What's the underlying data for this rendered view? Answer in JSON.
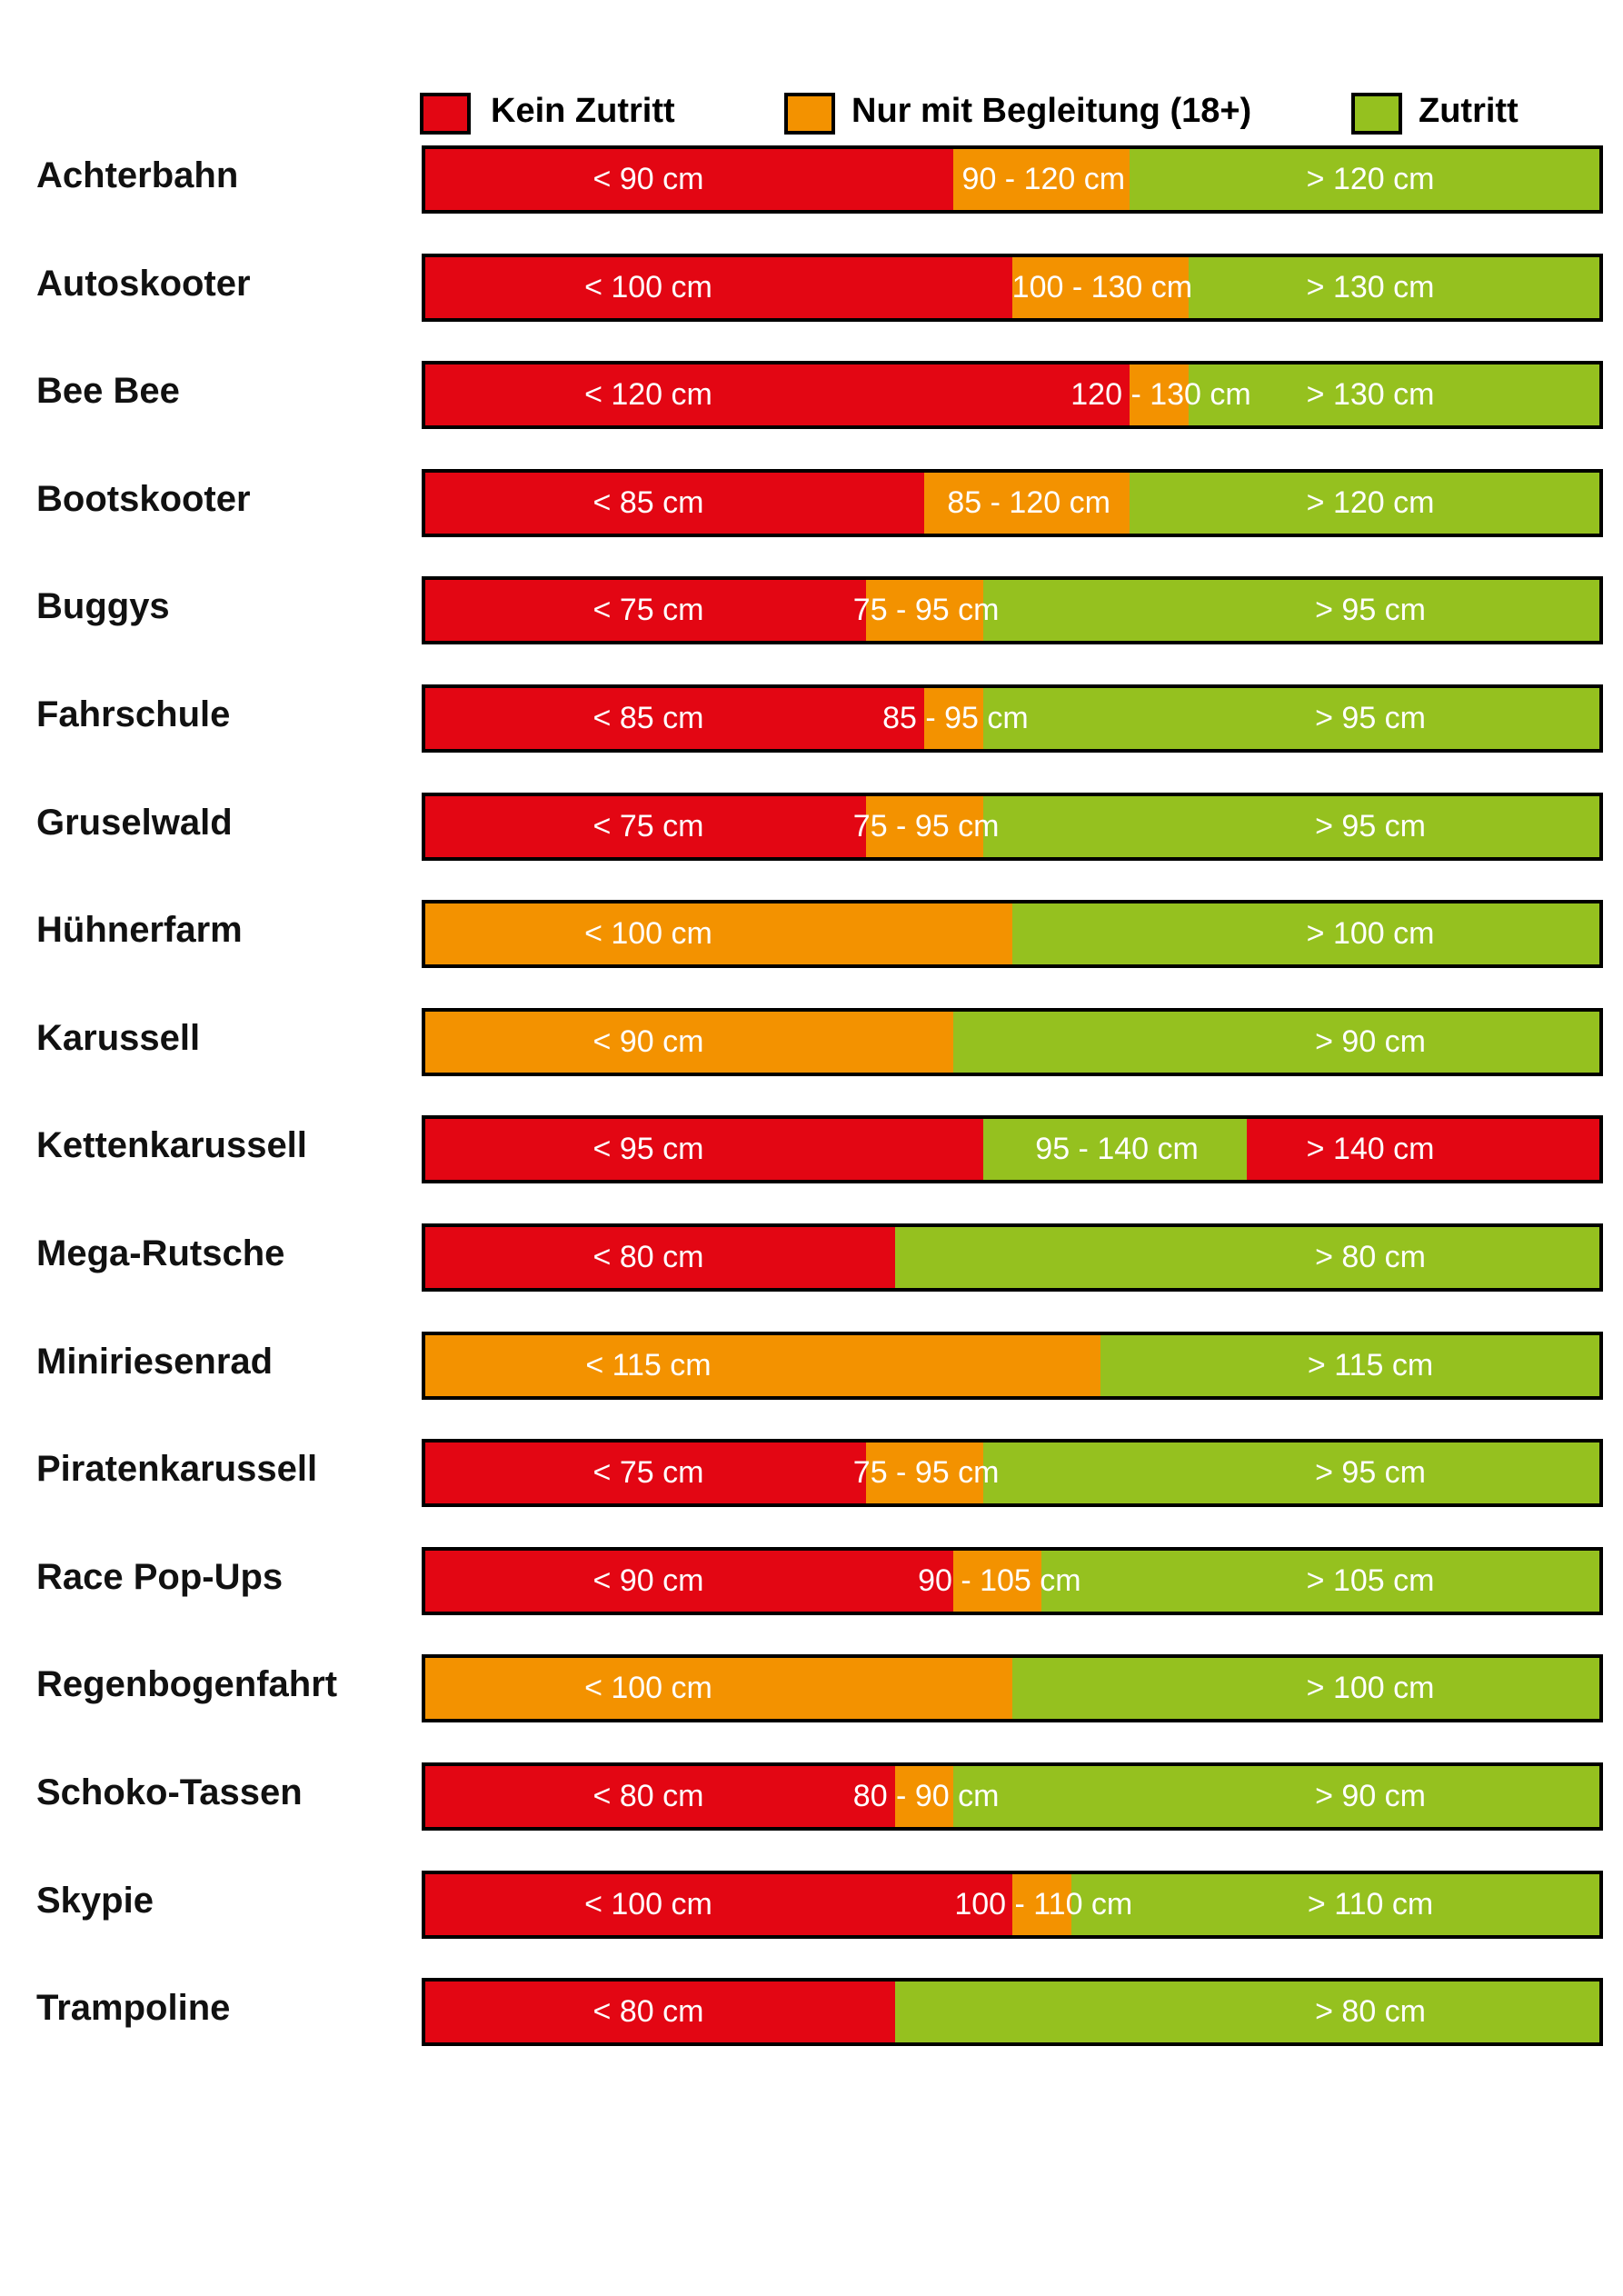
{
  "colors": {
    "kein": "#e30613",
    "begleitung": "#f39200",
    "zutritt": "#95c11f",
    "border": "#000000"
  },
  "legend": [
    {
      "key": "kein",
      "label": "Kein Zutritt"
    },
    {
      "key": "begleitung",
      "label": "Nur mit Begleitung (18+)"
    },
    {
      "key": "zutritt",
      "label": "Zutritt"
    }
  ],
  "chart_data": {
    "type": "bar",
    "orientation": "horizontal-stacked",
    "unit": "cm",
    "legend_position": "top",
    "categories": [
      "Achterbahn",
      "Autoskooter",
      "Bee Bee",
      "Bootskooter",
      "Buggys",
      "Fahrschule",
      "Gruselwald",
      "Hühnerfarm",
      "Karussell",
      "Kettenkarussell",
      "Mega-Rutsche",
      "Miniriesenrad",
      "Piratenkarussell",
      "Race Pop-Ups",
      "Regenbogenfahrt",
      "Schoko-Tassen",
      "Skypie",
      "Trampoline"
    ],
    "rows": [
      {
        "name": "Achterbahn",
        "segments": [
          {
            "status": "kein",
            "to": 90,
            "label": "< 90 cm"
          },
          {
            "status": "begleitung",
            "from": 90,
            "to": 120,
            "label": "90 - 120 cm"
          },
          {
            "status": "zutritt",
            "from": 120,
            "label": "> 120 cm"
          }
        ]
      },
      {
        "name": "Autoskooter",
        "segments": [
          {
            "status": "kein",
            "to": 100,
            "label": "< 100 cm"
          },
          {
            "status": "begleitung",
            "from": 100,
            "to": 130,
            "label": "100 - 130 cm"
          },
          {
            "status": "zutritt",
            "from": 130,
            "label": "> 130 cm"
          }
        ]
      },
      {
        "name": "Bee Bee",
        "segments": [
          {
            "status": "kein",
            "to": 120,
            "label": "< 120 cm"
          },
          {
            "status": "begleitung",
            "from": 120,
            "to": 130,
            "label": "120 - 130 cm"
          },
          {
            "status": "zutritt",
            "from": 130,
            "label": "> 130 cm"
          }
        ]
      },
      {
        "name": "Bootskooter",
        "segments": [
          {
            "status": "kein",
            "to": 85,
            "label": "< 85 cm"
          },
          {
            "status": "begleitung",
            "from": 85,
            "to": 120,
            "label": "85 - 120 cm"
          },
          {
            "status": "zutritt",
            "from": 120,
            "label": "> 120 cm"
          }
        ]
      },
      {
        "name": "Buggys",
        "segments": [
          {
            "status": "kein",
            "to": 75,
            "label": "< 75 cm"
          },
          {
            "status": "begleitung",
            "from": 75,
            "to": 95,
            "label": "75 - 95 cm"
          },
          {
            "status": "zutritt",
            "from": 95,
            "label": "> 95 cm"
          }
        ]
      },
      {
        "name": "Fahrschule",
        "segments": [
          {
            "status": "kein",
            "to": 85,
            "label": "< 85 cm"
          },
          {
            "status": "begleitung",
            "from": 85,
            "to": 95,
            "label": "85 - 95 cm"
          },
          {
            "status": "zutritt",
            "from": 95,
            "label": "> 95 cm"
          }
        ]
      },
      {
        "name": "Gruselwald",
        "segments": [
          {
            "status": "kein",
            "to": 75,
            "label": "< 75 cm"
          },
          {
            "status": "begleitung",
            "from": 75,
            "to": 95,
            "label": "75 - 95 cm"
          },
          {
            "status": "zutritt",
            "from": 95,
            "label": "> 95 cm"
          }
        ]
      },
      {
        "name": "Hühnerfarm",
        "segments": [
          {
            "status": "begleitung",
            "to": 100,
            "label": "< 100 cm"
          },
          {
            "status": "zutritt",
            "from": 100,
            "label": "> 100 cm"
          }
        ]
      },
      {
        "name": "Karussell",
        "segments": [
          {
            "status": "begleitung",
            "to": 90,
            "label": "< 90 cm"
          },
          {
            "status": "zutritt",
            "from": 90,
            "label": "> 90 cm"
          }
        ]
      },
      {
        "name": "Kettenkarussell",
        "segments": [
          {
            "status": "kein",
            "to": 95,
            "label": "< 95 cm"
          },
          {
            "status": "zutritt",
            "from": 95,
            "to": 140,
            "label": "95 - 140 cm"
          },
          {
            "status": "kein",
            "from": 140,
            "label": "> 140 cm"
          }
        ]
      },
      {
        "name": "Mega-Rutsche",
        "segments": [
          {
            "status": "kein",
            "to": 80,
            "label": "< 80 cm"
          },
          {
            "status": "zutritt",
            "from": 80,
            "label": "> 80 cm"
          }
        ]
      },
      {
        "name": "Miniriesenrad",
        "segments": [
          {
            "status": "begleitung",
            "to": 115,
            "label": "< 115 cm"
          },
          {
            "status": "zutritt",
            "from": 115,
            "label": "> 115 cm"
          }
        ]
      },
      {
        "name": "Piratenkarussell",
        "segments": [
          {
            "status": "kein",
            "to": 75,
            "label": "< 75 cm"
          },
          {
            "status": "begleitung",
            "from": 75,
            "to": 95,
            "label": "75 - 95 cm"
          },
          {
            "status": "zutritt",
            "from": 95,
            "label": "> 95 cm"
          }
        ]
      },
      {
        "name": "Race Pop-Ups",
        "segments": [
          {
            "status": "kein",
            "to": 90,
            "label": "< 90 cm"
          },
          {
            "status": "begleitung",
            "from": 90,
            "to": 105,
            "label": "90 - 105 cm"
          },
          {
            "status": "zutritt",
            "from": 105,
            "label": "> 105 cm"
          }
        ]
      },
      {
        "name": "Regenbogenfahrt",
        "segments": [
          {
            "status": "begleitung",
            "to": 100,
            "label": "< 100 cm"
          },
          {
            "status": "zutritt",
            "from": 100,
            "label": "> 100 cm"
          }
        ]
      },
      {
        "name": "Schoko-Tassen",
        "segments": [
          {
            "status": "kein",
            "to": 80,
            "label": "< 80 cm"
          },
          {
            "status": "begleitung",
            "from": 80,
            "to": 90,
            "label": "80 - 90 cm"
          },
          {
            "status": "zutritt",
            "from": 90,
            "label": "> 90 cm"
          }
        ]
      },
      {
        "name": "Skypie",
        "segments": [
          {
            "status": "kein",
            "to": 100,
            "label": "< 100 cm"
          },
          {
            "status": "begleitung",
            "from": 100,
            "to": 110,
            "label": "100 - 110 cm"
          },
          {
            "status": "zutritt",
            "from": 110,
            "label": "> 110 cm"
          }
        ]
      },
      {
        "name": "Trampoline",
        "segments": [
          {
            "status": "kein",
            "to": 80,
            "label": "< 80 cm"
          },
          {
            "status": "zutritt",
            "from": 80,
            "label": "> 80 cm"
          }
        ]
      }
    ]
  }
}
